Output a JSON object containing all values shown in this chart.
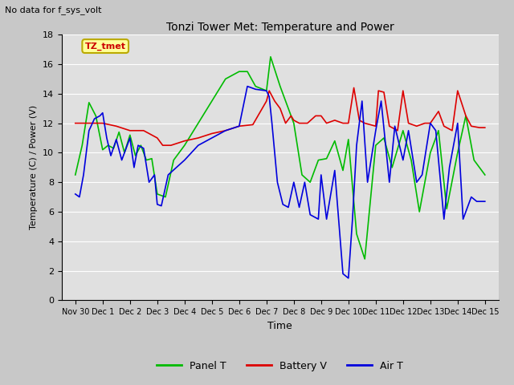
{
  "title": "Tonzi Tower Met: Temperature and Power",
  "top_left_text": "No data for f_sys_volt",
  "annotation_text": "TZ_tmet",
  "xlabel": "Time",
  "ylabel": "Temperature (C) / Power (V)",
  "ylim": [
    0,
    18
  ],
  "yticks": [
    0,
    2,
    4,
    6,
    8,
    10,
    12,
    14,
    16,
    18
  ],
  "xtick_labels": [
    "Nov 30",
    "Dec 1",
    "Dec 2",
    "Dec 3",
    "Dec 4",
    "Dec 5",
    "Dec 6",
    "Dec 7",
    "Dec 8",
    "Dec 9",
    "Dec 10",
    "Dec 11",
    "Dec 12",
    "Dec 13",
    "Dec 14",
    "Dec 15"
  ],
  "fig_bg_color": "#c8c8c8",
  "plot_bg_color": "#e0e0e0",
  "grid_color": "#ffffff",
  "panel_t_color": "#00bb00",
  "battery_v_color": "#dd0000",
  "air_t_color": "#0000dd",
  "legend_labels": [
    "Panel T",
    "Battery V",
    "Air T"
  ],
  "annotation_bg": "#ffff99",
  "annotation_border": "#bbaa00",
  "panel_t_x": [
    0.0,
    0.25,
    0.5,
    0.75,
    1.0,
    1.2,
    1.4,
    1.6,
    1.8,
    2.0,
    2.2,
    2.4,
    2.6,
    2.8,
    3.0,
    3.3,
    3.6,
    4.0,
    4.5,
    5.0,
    5.5,
    6.0,
    6.3,
    6.6,
    7.0,
    7.15,
    7.5,
    7.8,
    8.0,
    8.3,
    8.6,
    8.9,
    9.2,
    9.5,
    9.8,
    10.0,
    10.3,
    10.6,
    11.0,
    11.3,
    11.6,
    12.0,
    12.3,
    12.6,
    13.0,
    13.3,
    13.6,
    14.0,
    14.3,
    14.6,
    15.0
  ],
  "panel_t_y": [
    8.5,
    10.5,
    13.4,
    12.5,
    10.2,
    10.5,
    10.3,
    11.4,
    10.0,
    11.2,
    9.8,
    10.5,
    9.5,
    9.6,
    7.2,
    7.0,
    9.5,
    10.5,
    12.0,
    13.5,
    15.0,
    15.5,
    15.5,
    14.5,
    14.2,
    16.5,
    14.5,
    13.0,
    12.0,
    8.5,
    8.0,
    9.5,
    9.6,
    10.8,
    8.8,
    10.9,
    4.5,
    2.8,
    10.5,
    11.0,
    9.0,
    11.5,
    9.5,
    6.0,
    10.0,
    11.5,
    6.2,
    10.0,
    12.5,
    9.5,
    8.5
  ],
  "battery_v_x": [
    0.0,
    0.5,
    1.0,
    1.5,
    2.0,
    2.5,
    3.0,
    3.2,
    3.5,
    4.0,
    4.5,
    5.0,
    5.5,
    6.0,
    6.5,
    7.0,
    7.1,
    7.3,
    7.5,
    7.7,
    7.9,
    8.0,
    8.2,
    8.5,
    8.8,
    9.0,
    9.2,
    9.5,
    9.8,
    10.0,
    10.2,
    10.4,
    10.6,
    11.0,
    11.1,
    11.3,
    11.5,
    11.8,
    12.0,
    12.2,
    12.5,
    12.8,
    13.0,
    13.3,
    13.5,
    13.8,
    14.0,
    14.3,
    14.5,
    14.8,
    15.0
  ],
  "battery_v_y": [
    12.0,
    12.0,
    12.0,
    11.8,
    11.5,
    11.5,
    11.0,
    10.5,
    10.5,
    10.8,
    11.0,
    11.3,
    11.5,
    11.8,
    11.9,
    13.5,
    14.2,
    13.5,
    13.0,
    12.0,
    12.5,
    12.2,
    12.0,
    12.0,
    12.5,
    12.5,
    12.0,
    12.2,
    12.0,
    12.0,
    14.4,
    12.2,
    12.0,
    11.8,
    14.2,
    14.1,
    11.8,
    11.5,
    14.2,
    12.0,
    11.8,
    12.0,
    12.0,
    12.8,
    11.8,
    11.5,
    14.2,
    12.5,
    11.8,
    11.7,
    11.7
  ],
  "air_t_x": [
    0.0,
    0.15,
    0.3,
    0.5,
    0.7,
    0.9,
    1.0,
    1.15,
    1.3,
    1.5,
    1.7,
    1.9,
    2.0,
    2.15,
    2.3,
    2.5,
    2.7,
    2.9,
    3.0,
    3.15,
    3.4,
    3.7,
    4.0,
    4.5,
    5.0,
    5.5,
    6.0,
    6.3,
    6.6,
    7.0,
    7.1,
    7.2,
    7.4,
    7.6,
    7.8,
    8.0,
    8.2,
    8.4,
    8.6,
    8.9,
    9.0,
    9.2,
    9.5,
    9.8,
    10.0,
    10.15,
    10.3,
    10.5,
    10.7,
    11.0,
    11.2,
    11.5,
    11.7,
    12.0,
    12.2,
    12.5,
    12.7,
    13.0,
    13.2,
    13.5,
    13.7,
    14.0,
    14.2,
    14.5,
    14.7,
    15.0
  ],
  "air_t_y": [
    7.2,
    7.0,
    8.5,
    11.5,
    12.3,
    12.5,
    12.7,
    11.0,
    9.8,
    10.9,
    9.5,
    10.5,
    11.0,
    9.0,
    10.5,
    10.3,
    8.0,
    8.5,
    6.5,
    6.4,
    8.5,
    9.0,
    9.5,
    10.5,
    11.0,
    11.5,
    11.8,
    14.5,
    14.3,
    14.2,
    13.8,
    12.0,
    8.0,
    6.5,
    6.3,
    8.0,
    6.3,
    8.0,
    5.8,
    5.5,
    8.5,
    5.5,
    8.8,
    1.8,
    1.5,
    5.5,
    10.5,
    13.5,
    8.0,
    11.5,
    13.5,
    8.0,
    11.8,
    9.5,
    11.5,
    8.0,
    8.5,
    12.0,
    11.5,
    5.5,
    9.0,
    12.0,
    5.5,
    7.0,
    6.7,
    6.7
  ]
}
